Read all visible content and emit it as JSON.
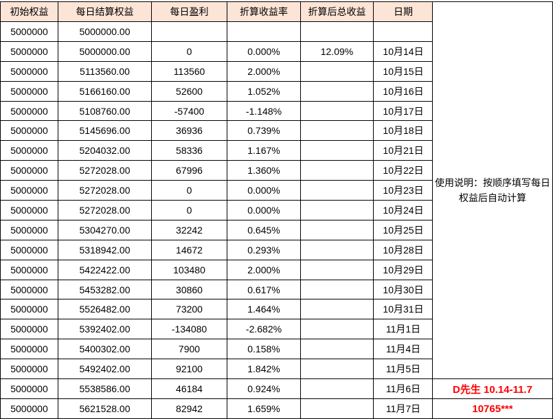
{
  "table": {
    "headers": [
      "初始权益",
      "每日结算权益",
      "每日盈利",
      "折算收益率",
      "折算后总收益",
      "日期"
    ],
    "rows": [
      {
        "initial": "5000000",
        "settle": "5000000.00",
        "profit": "",
        "rate": "",
        "total": "",
        "date": ""
      },
      {
        "initial": "5000000",
        "settle": "5000000.00",
        "profit": "0",
        "rate": "0.000%",
        "total": "12.09%",
        "date": "10月14日"
      },
      {
        "initial": "5000000",
        "settle": "5113560.00",
        "profit": "113560",
        "rate": "2.000%",
        "total": "",
        "date": "10月15日"
      },
      {
        "initial": "5000000",
        "settle": "5166160.00",
        "profit": "52600",
        "rate": "1.052%",
        "total": "",
        "date": "10月16日"
      },
      {
        "initial": "5000000",
        "settle": "5108760.00",
        "profit": "-57400",
        "rate": "-1.148%",
        "total": "",
        "date": "10月17日"
      },
      {
        "initial": "5000000",
        "settle": "5145696.00",
        "profit": "36936",
        "rate": "0.739%",
        "total": "",
        "date": "10月18日"
      },
      {
        "initial": "5000000",
        "settle": "5204032.00",
        "profit": "58336",
        "rate": "1.167%",
        "total": "",
        "date": "10月21日"
      },
      {
        "initial": "5000000",
        "settle": "5272028.00",
        "profit": "67996",
        "rate": "1.360%",
        "total": "",
        "date": "10月22日"
      },
      {
        "initial": "5000000",
        "settle": "5272028.00",
        "profit": "0",
        "rate": "0.000%",
        "total": "",
        "date": "10月23日"
      },
      {
        "initial": "5000000",
        "settle": "5272028.00",
        "profit": "0",
        "rate": "0.000%",
        "total": "",
        "date": "10月24日"
      },
      {
        "initial": "5000000",
        "settle": "5304270.00",
        "profit": "32242",
        "rate": "0.645%",
        "total": "",
        "date": "10月25日"
      },
      {
        "initial": "5000000",
        "settle": "5318942.00",
        "profit": "14672",
        "rate": "0.293%",
        "total": "",
        "date": "10月28日"
      },
      {
        "initial": "5000000",
        "settle": "5422422.00",
        "profit": "103480",
        "rate": "2.000%",
        "total": "",
        "date": "10月29日"
      },
      {
        "initial": "5000000",
        "settle": "5453282.00",
        "profit": "30860",
        "rate": "0.617%",
        "total": "",
        "date": "10月30日"
      },
      {
        "initial": "5000000",
        "settle": "5526482.00",
        "profit": "73200",
        "rate": "1.464%",
        "total": "",
        "date": "10月31日"
      },
      {
        "initial": "5000000",
        "settle": "5392402.00",
        "profit": "-134080",
        "rate": "-2.682%",
        "total": "",
        "date": "11月1日"
      },
      {
        "initial": "5000000",
        "settle": "5400302.00",
        "profit": "7900",
        "rate": "0.158%",
        "total": "",
        "date": "11月4日"
      },
      {
        "initial": "5000000",
        "settle": "5492402.00",
        "profit": "92100",
        "rate": "1.842%",
        "total": "",
        "date": "11月5日"
      },
      {
        "initial": "5000000",
        "settle": "5538586.00",
        "profit": "46184",
        "rate": "0.924%",
        "total": "",
        "date": "11月6日"
      },
      {
        "initial": "5000000",
        "settle": "5621528.00",
        "profit": "82942",
        "rate": "1.659%",
        "total": "",
        "date": "11月7日"
      }
    ]
  },
  "side_panel": {
    "instructions": "使用说明：按顺序填写每日权益后自动计算",
    "annotation_line1": "D先生 10.14-11.7",
    "annotation_line2": "10765***"
  },
  "colors": {
    "header_bg": "#FCE4D6",
    "accent_red": "#FF0000",
    "border": "#000000"
  }
}
